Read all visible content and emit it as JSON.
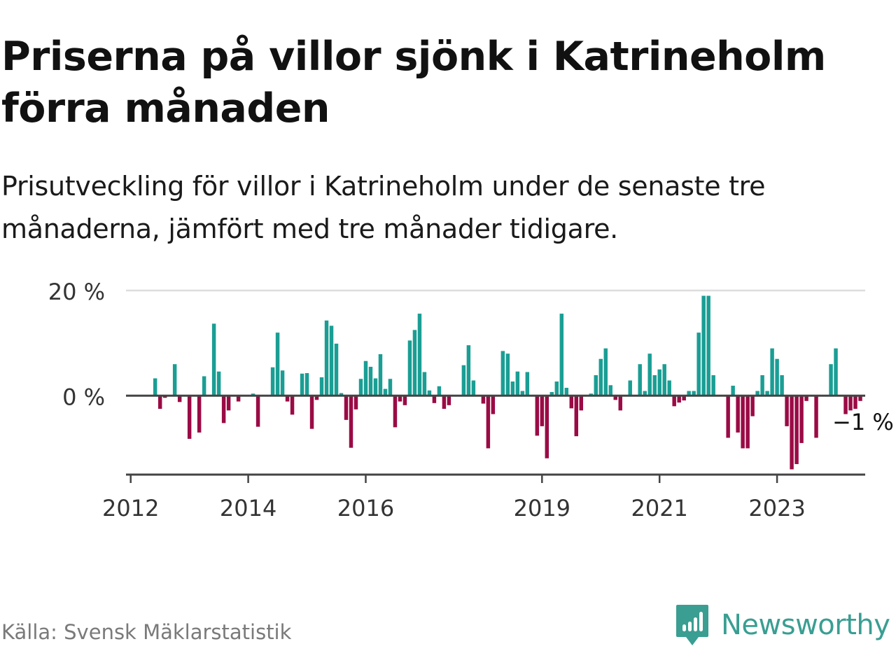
{
  "header": {
    "title": "Priserna på villor sjönk i Katrineholm förra månaden",
    "subtitle": "Prisutveckling för villor i Katrineholm under de senaste tre månaderna, jämfört med tre månader tidigare."
  },
  "footer": {
    "source": "Källa: Svensk Mäklarstatistik",
    "brand": "Newsworthy",
    "brand_icon": "bar-chart-speech-icon"
  },
  "colors": {
    "positive": "#1a9e94",
    "negative": "#9a0b45",
    "gridline": "#dddddd",
    "axis": "#444444",
    "brand": "#3a9e92"
  },
  "chart_data": {
    "type": "bar",
    "title": "",
    "xlabel": "",
    "ylabel": "",
    "ylim": [
      -15,
      22
    ],
    "y_ticks": [
      {
        "value": 0,
        "label": "0 %"
      },
      {
        "value": 20,
        "label": "20 %"
      }
    ],
    "x_ticks": [
      {
        "value": 2012.0,
        "label": "2012"
      },
      {
        "value": 2014.0,
        "label": "2014"
      },
      {
        "value": 2016.0,
        "label": "2016"
      },
      {
        "value": 2019.0,
        "label": "2019"
      },
      {
        "value": 2021.0,
        "label": "2021"
      },
      {
        "value": 2023.0,
        "label": "2023"
      }
    ],
    "x_range": [
      2011.92,
      2024.5
    ],
    "last_value_label": "−1 %",
    "grid": {
      "horizontal": true,
      "vertical": false
    },
    "series": [
      {
        "start": "2012-06",
        "unit": "%",
        "values": [
          3.3,
          -2.5,
          -0.4,
          0,
          6.0,
          -1.2,
          0,
          -8.2,
          0,
          -7.0,
          3.7,
          0,
          13.7,
          4.6,
          -5.2,
          -2.8,
          0,
          -1.1,
          0,
          0,
          0.4,
          -5.9,
          0,
          0,
          5.4,
          12.0,
          4.8,
          -1.1,
          -3.6,
          0,
          4.2,
          4.3,
          -6.3,
          -0.8,
          3.5,
          14.3,
          13.3,
          9.9,
          0.5,
          -4.6,
          -9.9,
          -2.6,
          3.2,
          6.6,
          5.5,
          3.3,
          7.9,
          1.3,
          3.2,
          -6.0,
          -1.1,
          -1.8,
          10.5,
          12.5,
          15.6,
          4.5,
          1.0,
          -1.4,
          1.8,
          -2.5,
          -1.8,
          0,
          0,
          5.8,
          9.6,
          2.9,
          0,
          -1.5,
          -10.0,
          -3.5,
          0,
          8.5,
          8.0,
          2.7,
          4.6,
          0.9,
          4.5,
          0,
          -7.6,
          -5.8,
          -11.9,
          0.7,
          2.7,
          15.6,
          1.5,
          -2.4,
          -7.7,
          -2.8,
          0,
          0.4,
          3.9,
          7.0,
          9.0,
          2.0,
          -0.8,
          -2.8,
          0,
          2.9,
          0,
          6.0,
          0.9,
          8.0,
          3.9,
          5.0,
          6.0,
          2.9,
          -2.0,
          -1.3,
          -0.9,
          0.9,
          0.9,
          12.0,
          19.0,
          19.0,
          3.9,
          0,
          0,
          -8.0,
          1.9,
          -7.0,
          -10.0,
          -10.0,
          -3.9,
          0.9,
          3.9,
          0.9,
          9.0,
          7.0,
          3.9,
          -5.8,
          -14.0,
          -13.0,
          -9.0,
          -1.0,
          0,
          -8.0,
          0,
          0,
          6.0,
          9.0,
          0,
          -3.5,
          -2.8,
          -2.5,
          -1.0
        ]
      }
    ]
  }
}
